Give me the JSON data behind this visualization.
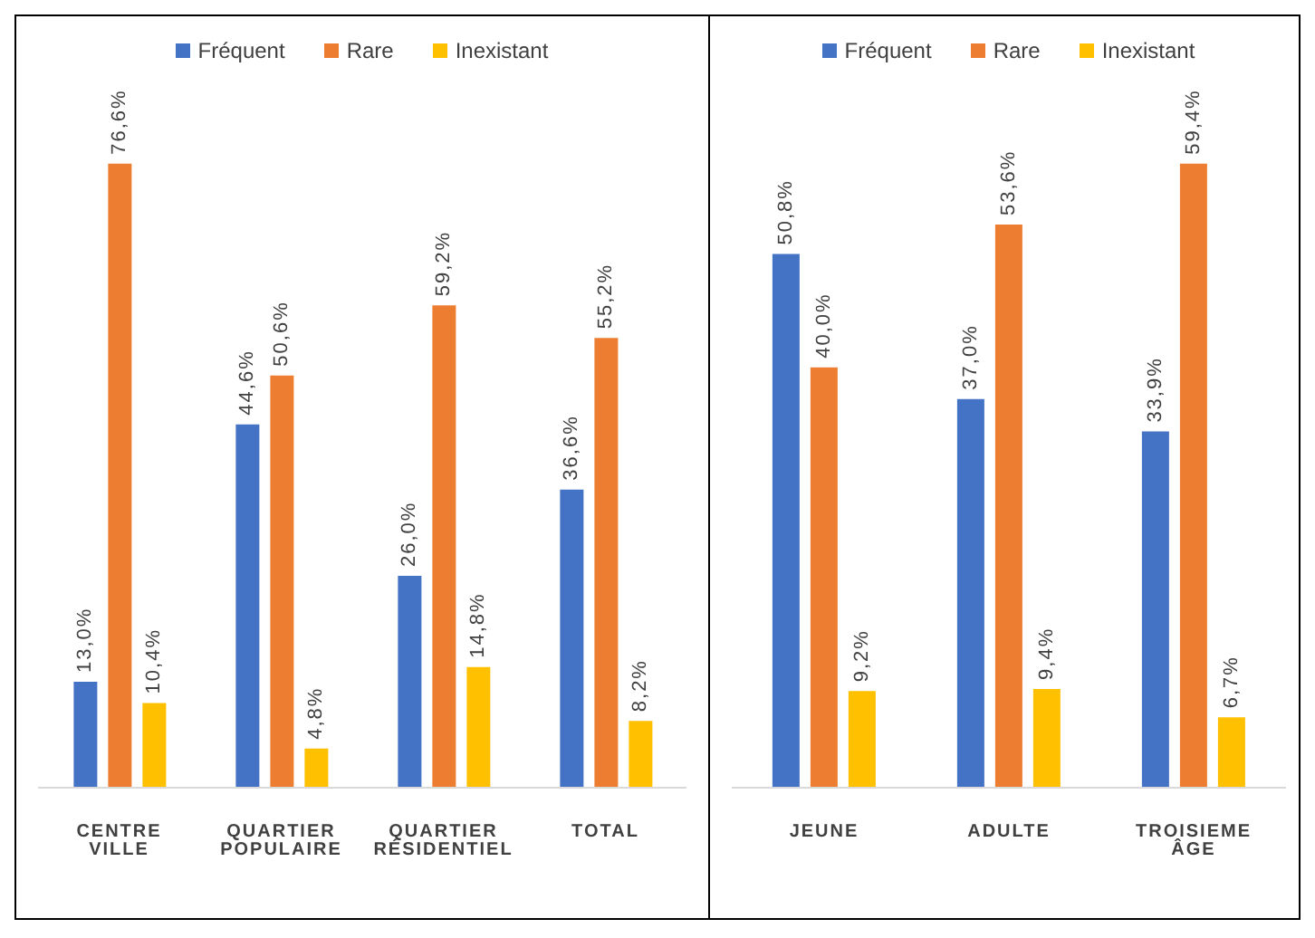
{
  "chart_data": [
    {
      "type": "bar",
      "categories": [
        "CENTRE VILLE",
        "QUARTIER POPULAIRE",
        "QUARTIER RÉSIDENTIEL",
        "TOTAL"
      ],
      "legend": "top",
      "series": [
        {
          "name": "Fréquent",
          "color": "#4472c4",
          "values": [
            13.0,
            44.6,
            26.0,
            36.6
          ],
          "value_labels": [
            "13,0%",
            "44,6%",
            "26,0%",
            "36,6%"
          ]
        },
        {
          "name": "Rare",
          "color": "#ed7d31",
          "values": [
            76.6,
            50.6,
            59.2,
            55.2
          ],
          "value_labels": [
            "76,6%",
            "50,6%",
            "59,2%",
            "55,2%"
          ]
        },
        {
          "name": "Inexistant",
          "color": "#ffc000",
          "values": [
            10.4,
            4.8,
            14.8,
            8.2
          ],
          "value_labels": [
            "10,4%",
            "4,8%",
            "14,8%",
            "8,2%"
          ]
        }
      ]
    },
    {
      "type": "bar",
      "categories": [
        "JEUNE",
        "ADULTE",
        "TROISIEME ÂGE"
      ],
      "legend": "top",
      "series": [
        {
          "name": "Fréquent",
          "color": "#4472c4",
          "values": [
            50.8,
            37.0,
            33.9
          ],
          "value_labels": [
            "50,8%",
            "37,0%",
            "33,9%"
          ]
        },
        {
          "name": "Rare",
          "color": "#ed7d31",
          "values": [
            40.0,
            53.6,
            59.4
          ],
          "value_labels": [
            "40,0%",
            "53,6%",
            "59,4%"
          ]
        },
        {
          "name": "Inexistant",
          "color": "#ffc000",
          "values": [
            9.2,
            9.4,
            6.7
          ],
          "value_labels": [
            "9,2%",
            "9,4%",
            "6,7%"
          ]
        }
      ]
    }
  ]
}
